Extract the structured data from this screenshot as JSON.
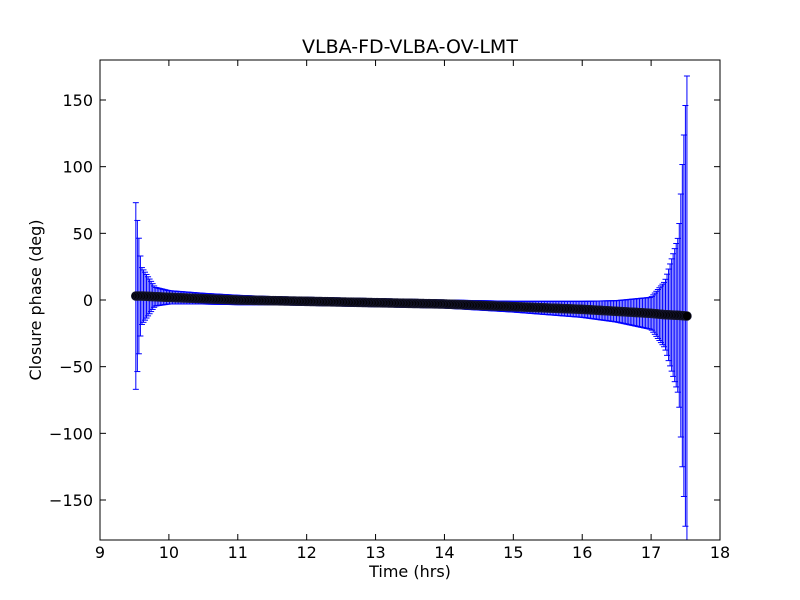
{
  "chart_data": {
    "type": "scatter",
    "title": "VLBA-FD-VLBA-OV-LMT",
    "xlabel": "Time (hrs)",
    "ylabel": "Closure phase (deg)",
    "xlim": [
      9,
      18
    ],
    "ylim": [
      -180,
      180
    ],
    "xticks": [
      9,
      10,
      11,
      12,
      13,
      14,
      15,
      16,
      17,
      18
    ],
    "yticks": [
      150,
      100,
      50,
      0,
      -50,
      -100,
      -150
    ],
    "ytick_labels": [
      "150",
      "100",
      "50",
      "0",
      "−50",
      "−100",
      "−150"
    ],
    "grid": false,
    "colors": {
      "points": "#000000",
      "errorbars": "#0000ff",
      "axes": "#000000"
    },
    "series": [
      {
        "x": [
          9.52,
          9.6,
          9.8,
          10.0,
          10.5,
          11.0,
          11.5,
          12.0,
          12.5,
          13.0,
          13.5,
          14.0,
          14.5,
          15.0,
          15.5,
          16.0,
          16.5,
          17.0,
          17.2,
          17.4,
          17.52
        ],
        "y": [
          3,
          3,
          2.5,
          2,
          1,
          0,
          -0.5,
          -1,
          -1.5,
          -2,
          -2.5,
          -3,
          -4,
          -5,
          -6,
          -7,
          -8.5,
          -10,
          -11,
          -11.5,
          -12
        ],
        "err": [
          70,
          22,
          7,
          5,
          4,
          3.5,
          3,
          3,
          3,
          3,
          3,
          3,
          3.5,
          4,
          5,
          6,
          8,
          12,
          25,
          60,
          180
        ]
      }
    ]
  }
}
